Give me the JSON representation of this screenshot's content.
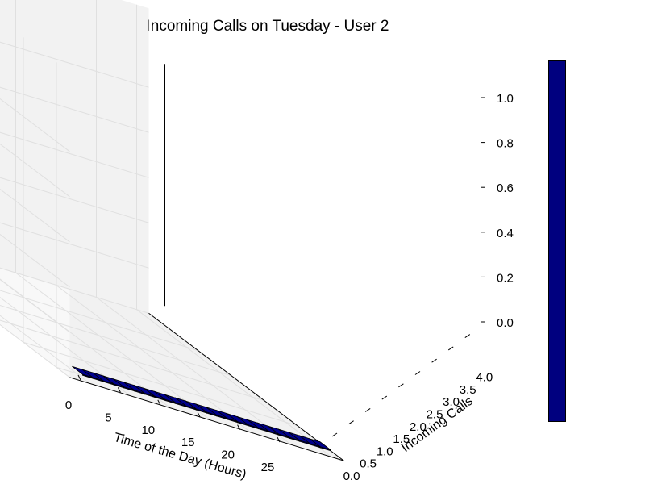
{
  "chart_data": {
    "type": "bar3d",
    "title": "Incoming Calls on Tuesday - User 2",
    "xlabel": "Time of the Day (Hours)",
    "ylabel": "Incoming Calls",
    "zlabel": "",
    "xlim": [
      0,
      25
    ],
    "ylim": [
      0,
      4
    ],
    "zlim": [
      0,
      1
    ],
    "x_ticks": [
      "0",
      "5",
      "10",
      "15",
      "20",
      "25"
    ],
    "y_ticks": [
      "0.0",
      "0.5",
      "1.0",
      "1.5",
      "2.0",
      "2.5",
      "3.0",
      "3.5",
      "4.0"
    ],
    "z_ticks": [
      "0.0",
      "0.2",
      "0.4",
      "0.6",
      "0.8",
      "1.0"
    ],
    "bars": [
      {
        "hour": 0,
        "calls": 0,
        "value": 0
      },
      {
        "hour": 1,
        "calls": 0,
        "value": 0
      },
      {
        "hour": 2,
        "calls": 0,
        "value": 0
      },
      {
        "hour": 3,
        "calls": 0,
        "value": 0
      },
      {
        "hour": 4,
        "calls": 0,
        "value": 0
      },
      {
        "hour": 5,
        "calls": 0,
        "value": 0
      },
      {
        "hour": 6,
        "calls": 0,
        "value": 0
      },
      {
        "hour": 7,
        "calls": 0,
        "value": 0
      },
      {
        "hour": 8,
        "calls": 0,
        "value": 0
      },
      {
        "hour": 9,
        "calls": 0,
        "value": 0
      },
      {
        "hour": 10,
        "calls": 0,
        "value": 0
      },
      {
        "hour": 11,
        "calls": 0,
        "value": 0
      },
      {
        "hour": 12,
        "calls": 0,
        "value": 0
      },
      {
        "hour": 13,
        "calls": 0,
        "value": 0
      },
      {
        "hour": 14,
        "calls": 0,
        "value": 0
      },
      {
        "hour": 15,
        "calls": 0,
        "value": 0
      },
      {
        "hour": 16,
        "calls": 0,
        "value": 0
      },
      {
        "hour": 17,
        "calls": 0,
        "value": 0
      },
      {
        "hour": 18,
        "calls": 0,
        "value": 0
      },
      {
        "hour": 19,
        "calls": 0,
        "value": 0
      },
      {
        "hour": 20,
        "calls": 0,
        "value": 0
      },
      {
        "hour": 21,
        "calls": 0,
        "value": 0
      },
      {
        "hour": 22,
        "calls": 0,
        "value": 0
      },
      {
        "hour": 23,
        "calls": 0,
        "value": 0
      },
      {
        "hour": 0,
        "calls": 4,
        "value": 1
      }
    ],
    "grid": true,
    "colors": {
      "bar": "#00007f",
      "bar_top": "#00008b",
      "bar_side": "#000060",
      "pane": "#f2f2f2",
      "grid": "#e0e0e0",
      "colorbar": "#00007f"
    },
    "colorbar": true
  }
}
